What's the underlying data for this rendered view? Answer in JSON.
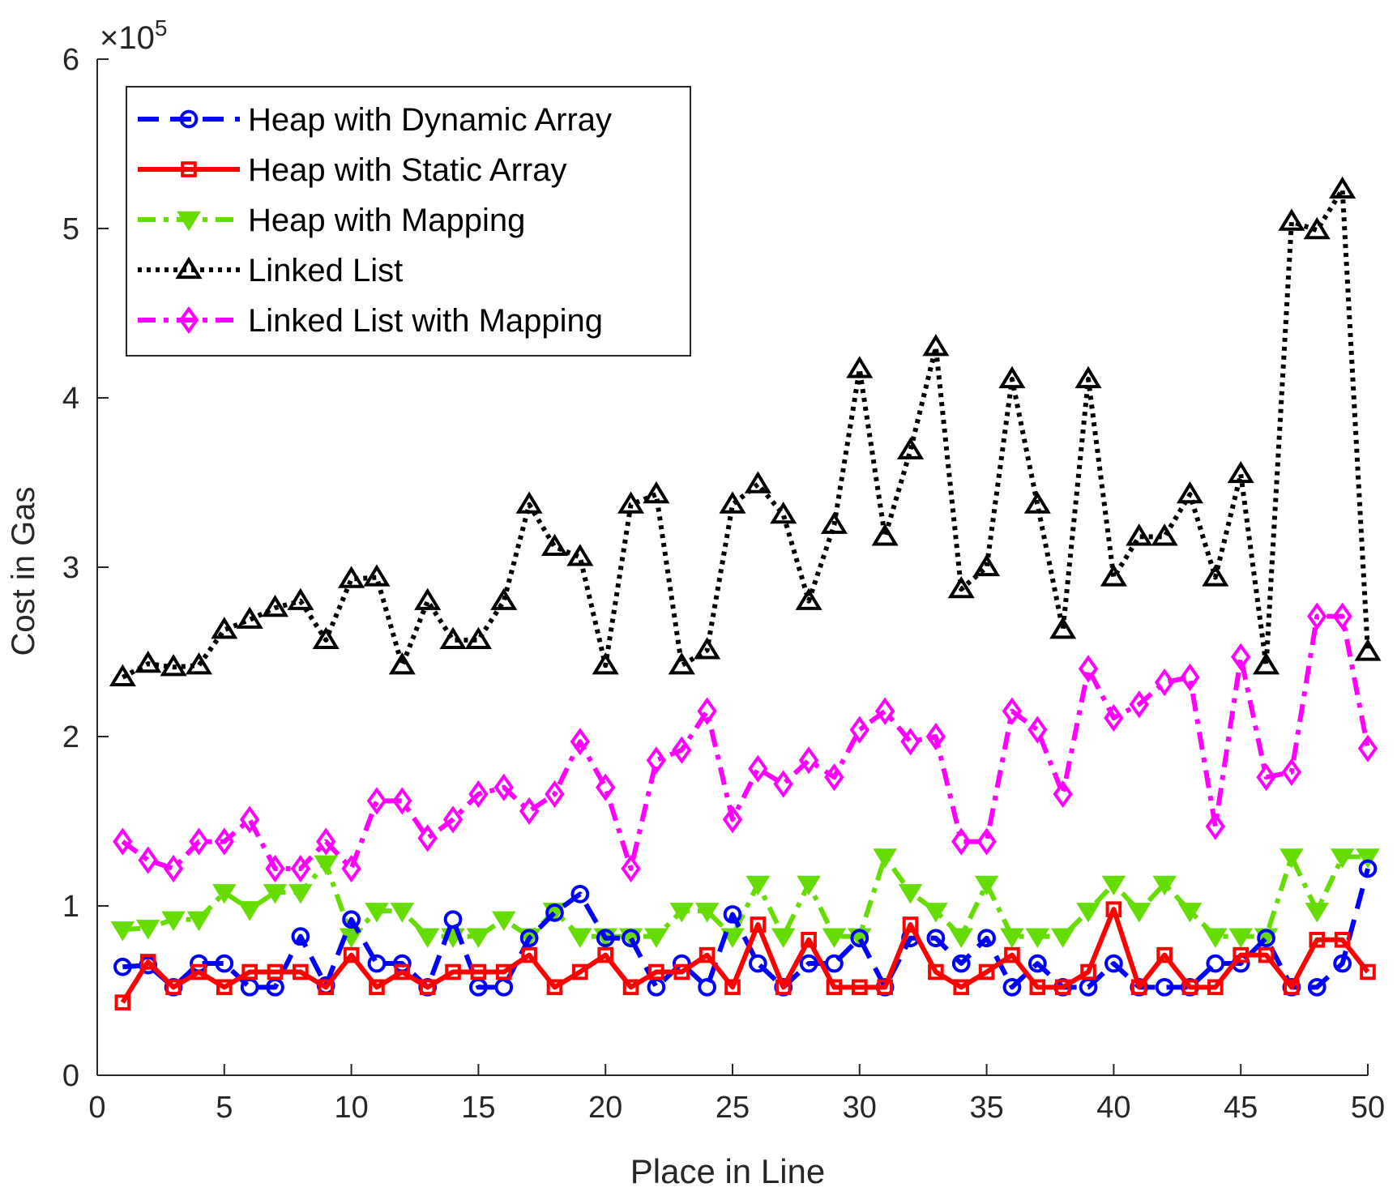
{
  "chart_data": {
    "type": "line",
    "title": "",
    "xlabel": "Place in Line",
    "ylabel": "Cost in Gas",
    "y_exponent_label": "×10",
    "y_exponent_power": "5",
    "xlim": [
      0,
      50
    ],
    "ylim": [
      0,
      6
    ],
    "x_ticks": [
      0,
      5,
      10,
      15,
      20,
      25,
      30,
      35,
      40,
      45,
      50
    ],
    "y_ticks": [
      0,
      1,
      2,
      3,
      4,
      5,
      6
    ],
    "grid": false,
    "legend_position": "top-left",
    "x": [
      1,
      2,
      3,
      4,
      5,
      6,
      7,
      8,
      9,
      10,
      11,
      12,
      13,
      14,
      15,
      16,
      17,
      18,
      19,
      20,
      21,
      22,
      23,
      24,
      25,
      26,
      27,
      28,
      29,
      30,
      31,
      32,
      33,
      34,
      35,
      36,
      37,
      38,
      39,
      40,
      41,
      42,
      43,
      44,
      45,
      46,
      47,
      48,
      49,
      50
    ],
    "series": [
      {
        "name": "Heap with Dynamic Array",
        "color": "#0000ff",
        "marker": "circle",
        "dash": "dashed",
        "values": [
          0.64,
          0.65,
          0.52,
          0.66,
          0.66,
          0.52,
          0.52,
          0.82,
          0.53,
          0.92,
          0.66,
          0.66,
          0.52,
          0.92,
          0.52,
          0.52,
          0.81,
          0.96,
          1.07,
          0.81,
          0.81,
          0.52,
          0.66,
          0.52,
          0.95,
          0.66,
          0.52,
          0.66,
          0.66,
          0.81,
          0.52,
          0.81,
          0.81,
          0.66,
          0.81,
          0.52,
          0.66,
          0.52,
          0.52,
          0.66,
          0.52,
          0.52,
          0.52,
          0.66,
          0.66,
          0.81,
          0.52,
          0.52,
          0.66,
          1.22
        ]
      },
      {
        "name": "Heap with Static Array",
        "color": "#ff0000",
        "marker": "square",
        "dash": "solid",
        "values": [
          0.43,
          0.67,
          0.52,
          0.61,
          0.52,
          0.61,
          0.61,
          0.61,
          0.52,
          0.71,
          0.52,
          0.61,
          0.52,
          0.61,
          0.61,
          0.61,
          0.71,
          0.52,
          0.61,
          0.71,
          0.52,
          0.61,
          0.61,
          0.71,
          0.52,
          0.89,
          0.52,
          0.8,
          0.52,
          0.52,
          0.52,
          0.89,
          0.61,
          0.52,
          0.61,
          0.71,
          0.52,
          0.52,
          0.61,
          0.98,
          0.52,
          0.71,
          0.52,
          0.52,
          0.71,
          0.71,
          0.52,
          0.8,
          0.8,
          0.61
        ]
      },
      {
        "name": "Heap with Mapping",
        "color": "#66dd00",
        "marker": "triangle-down",
        "dash": "dashdot",
        "values": [
          0.86,
          0.87,
          0.92,
          0.92,
          1.08,
          0.98,
          1.08,
          1.08,
          1.25,
          0.82,
          0.97,
          0.97,
          0.82,
          0.82,
          0.82,
          0.92,
          0.82,
          0.97,
          0.82,
          0.82,
          0.82,
          0.82,
          0.97,
          0.97,
          0.82,
          1.13,
          0.82,
          1.13,
          0.82,
          0.82,
          1.29,
          1.08,
          0.97,
          0.82,
          1.13,
          0.82,
          0.82,
          0.82,
          0.97,
          1.13,
          0.97,
          1.13,
          0.97,
          0.82,
          0.82,
          0.82,
          1.29,
          0.97,
          1.29,
          1.29
        ]
      },
      {
        "name": "Linked List",
        "color": "#000000",
        "marker": "triangle-up",
        "dash": "dotted",
        "values": [
          2.35,
          2.43,
          2.41,
          2.42,
          2.63,
          2.69,
          2.76,
          2.8,
          2.57,
          2.93,
          2.94,
          2.42,
          2.8,
          2.57,
          2.57,
          2.8,
          3.37,
          3.12,
          3.06,
          2.42,
          3.37,
          3.43,
          2.42,
          2.51,
          3.37,
          3.49,
          3.31,
          2.8,
          3.25,
          4.17,
          3.18,
          3.69,
          4.3,
          2.87,
          3.0,
          4.11,
          3.37,
          2.63,
          4.11,
          2.94,
          3.18,
          3.18,
          3.43,
          2.94,
          3.55,
          2.42,
          5.04,
          4.99,
          5.23,
          2.5
        ]
      },
      {
        "name": "Linked List with Mapping",
        "color": "#ff00ff",
        "marker": "diamond",
        "dash": "dashdot",
        "values": [
          1.38,
          1.27,
          1.22,
          1.38,
          1.38,
          1.51,
          1.22,
          1.22,
          1.38,
          1.22,
          1.62,
          1.62,
          1.4,
          1.51,
          1.66,
          1.7,
          1.56,
          1.66,
          1.97,
          1.7,
          1.22,
          1.86,
          1.92,
          2.15,
          1.51,
          1.81,
          1.72,
          1.86,
          1.76,
          2.04,
          2.15,
          1.97,
          2.0,
          1.38,
          1.38,
          2.15,
          2.04,
          1.66,
          2.4,
          2.11,
          2.19,
          2.32,
          2.35,
          1.47,
          2.47,
          1.76,
          1.79,
          2.71,
          2.71,
          1.93
        ]
      }
    ]
  }
}
